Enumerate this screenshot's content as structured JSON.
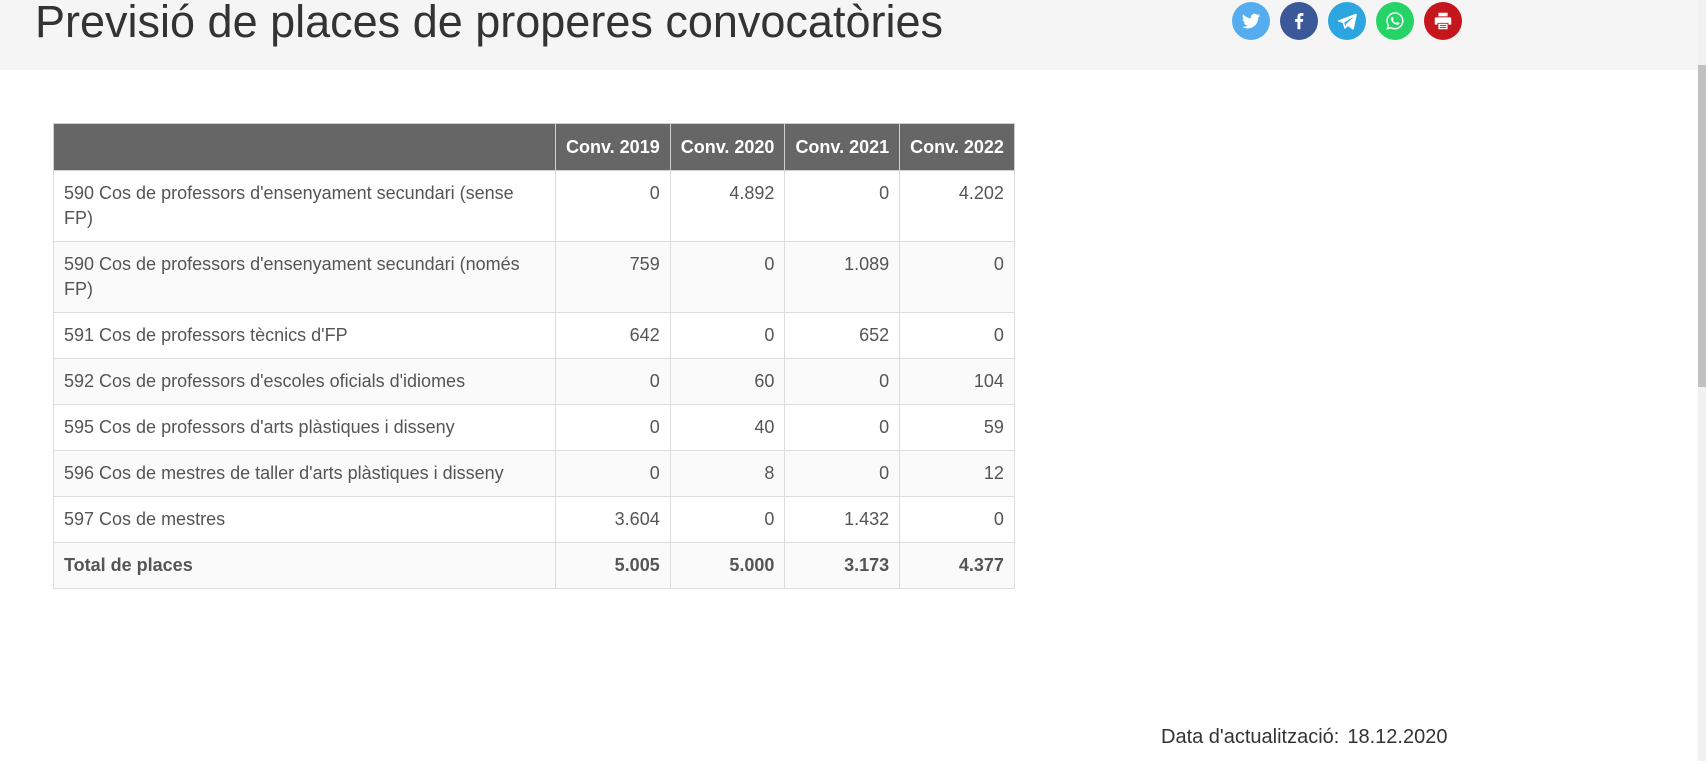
{
  "page": {
    "title": "Previsió de places de properes convocatòries"
  },
  "share_buttons": [
    {
      "name": "twitter-icon",
      "color": "#55acee"
    },
    {
      "name": "facebook-icon",
      "color": "#3b5998"
    },
    {
      "name": "telegram-icon",
      "color": "#2ca5e0"
    },
    {
      "name": "whatsapp-icon",
      "color": "#25d366"
    },
    {
      "name": "print-icon",
      "color": "#c4161c"
    }
  ],
  "table": {
    "headers": [
      "",
      "Conv. 2019",
      "Conv. 2020",
      "Conv. 2021",
      "Conv. 2022"
    ],
    "rows": [
      {
        "label": "590 Cos de professors d'ensenyament secundari (sense FP)",
        "values": [
          "0",
          "4.892",
          "0",
          "4.202"
        ]
      },
      {
        "label": "590 Cos de professors d'ensenyament secundari (només FP)",
        "values": [
          "759",
          "0",
          "1.089",
          "0"
        ]
      },
      {
        "label": "591 Cos de professors tècnics d'FP",
        "values": [
          "642",
          "0",
          "652",
          "0"
        ]
      },
      {
        "label": "592 Cos de professors d'escoles oficials d'idiomes",
        "values": [
          "0",
          "60",
          "0",
          "104"
        ]
      },
      {
        "label": "595 Cos de professors d'arts plàstiques i disseny",
        "values": [
          "0",
          "40",
          "0",
          "59"
        ]
      },
      {
        "label": "596 Cos de mestres de taller d'arts plàstiques i disseny",
        "values": [
          "0",
          "8",
          "0",
          "12"
        ]
      },
      {
        "label": "597 Cos de mestres",
        "values": [
          "3.604",
          "0",
          "1.432",
          "0"
        ]
      }
    ],
    "total": {
      "label": "Total de places",
      "values": [
        "5.005",
        "5.000",
        "3.173",
        "4.377"
      ]
    }
  },
  "footer": {
    "updated_label": "Data d'actualització:",
    "updated_value": "18.12.2020"
  }
}
